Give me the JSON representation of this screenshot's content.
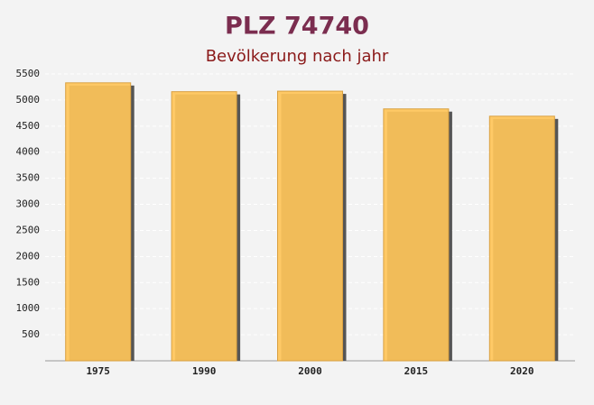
{
  "chart_data": {
    "type": "bar",
    "title": "PLZ 74740",
    "subtitle": "Bevölkerung nach jahr",
    "categories": [
      "1975",
      "1990",
      "2000",
      "2015",
      "2020"
    ],
    "values": [
      5330,
      5160,
      5170,
      4830,
      4690
    ],
    "color": "#ffc55a",
    "ylim": [
      0,
      5500
    ],
    "yticks": [
      500,
      1000,
      1500,
      2000,
      2500,
      3000,
      3500,
      4000,
      4500,
      5000,
      5500
    ],
    "grid": true
  }
}
